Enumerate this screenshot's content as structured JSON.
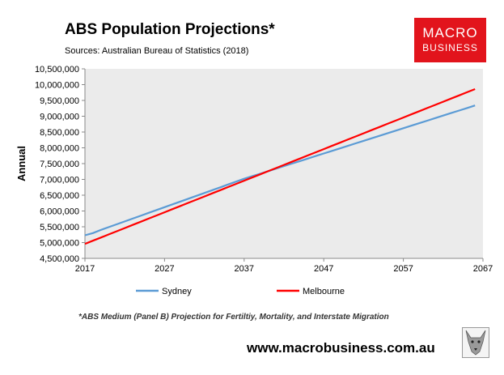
{
  "header": {
    "title": "ABS Population Projections*",
    "subtitle": "Sources: Australian Bureau of Statistics (2018)"
  },
  "logo": {
    "line1": "MACRO",
    "line2": "BUSINESS",
    "color": "#e2141c"
  },
  "footer": {
    "footnote": "*ABS Medium (Panel B) Projection for Fertiltiy, Mortality, and Interstate Migration",
    "website": "www.macrobusiness.com.au"
  },
  "chart_data": {
    "type": "line",
    "title": "ABS Population Projections*",
    "ylabel": "Annual",
    "xlabel": "",
    "xlim": [
      2017,
      2067
    ],
    "ylim": [
      4500000,
      10500000
    ],
    "x_ticks": [
      "2017",
      "2027",
      "2037",
      "2047",
      "2057",
      "2067"
    ],
    "y_ticks": [
      "4,500,000",
      "5,000,000",
      "5,500,000",
      "6,000,000",
      "6,500,000",
      "7,000,000",
      "7,500,000",
      "8,000,000",
      "8,500,000",
      "9,000,000",
      "9,500,000",
      "10,000,000",
      "10,500,000"
    ],
    "legend_position": "bottom",
    "grid": false,
    "plot_background": "#ebebeb",
    "x": [
      2017,
      2018,
      2019,
      2020,
      2021,
      2022,
      2023,
      2024,
      2025,
      2026,
      2027,
      2028,
      2029,
      2030,
      2031,
      2032,
      2033,
      2034,
      2035,
      2036,
      2037,
      2038,
      2039,
      2040,
      2041,
      2042,
      2043,
      2044,
      2045,
      2046,
      2047,
      2048,
      2049,
      2050,
      2051,
      2052,
      2053,
      2054,
      2055,
      2056,
      2057,
      2058,
      2059,
      2060,
      2061,
      2062,
      2063,
      2064,
      2065,
      2066
    ],
    "series": [
      {
        "name": "Sydney",
        "color": "#5b9bd5",
        "values": [
          5230000,
          5300000,
          5400000,
          5490000,
          5580000,
          5670000,
          5760000,
          5850000,
          5940000,
          6030000,
          6120000,
          6210000,
          6300000,
          6390000,
          6480000,
          6570000,
          6660000,
          6750000,
          6840000,
          6930000,
          7020000,
          7100000,
          7180000,
          7260000,
          7340000,
          7420000,
          7500000,
          7580000,
          7660000,
          7740000,
          7820000,
          7900000,
          7980000,
          8060000,
          8140000,
          8220000,
          8300000,
          8380000,
          8460000,
          8540000,
          8620000,
          8700000,
          8780000,
          8860000,
          8940000,
          9020000,
          9100000,
          9180000,
          9260000,
          9340000
        ]
      },
      {
        "name": "Melbourne",
        "color": "#ff0000",
        "values": [
          4960000,
          5060000,
          5160000,
          5260000,
          5360000,
          5460000,
          5560000,
          5660000,
          5760000,
          5860000,
          5960000,
          6060000,
          6160000,
          6260000,
          6360000,
          6460000,
          6560000,
          6660000,
          6760000,
          6860000,
          6960000,
          7060000,
          7160000,
          7260000,
          7360000,
          7460000,
          7560000,
          7660000,
          7760000,
          7860000,
          7960000,
          8060000,
          8160000,
          8260000,
          8360000,
          8460000,
          8560000,
          8660000,
          8760000,
          8860000,
          8960000,
          9060000,
          9160000,
          9260000,
          9360000,
          9460000,
          9560000,
          9660000,
          9760000,
          9860000
        ]
      }
    ]
  }
}
